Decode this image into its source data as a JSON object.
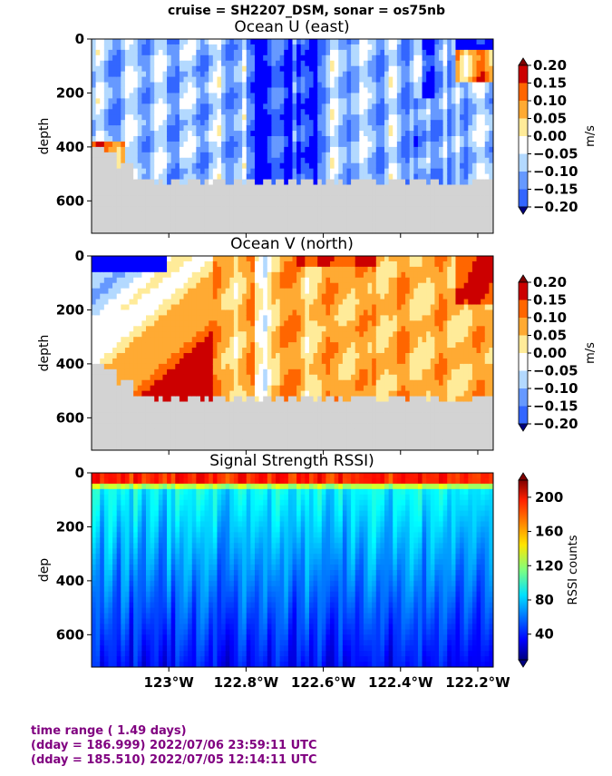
{
  "suptitle": "cruise = SH2207_DSM,  sonar = os75nb",
  "footer": {
    "line1": "time range ( 1.49 days)",
    "line2": "(dday = 186.999) 2022/07/06 23:59:11 UTC",
    "line3": "(dday = 185.510) 2022/07/05 12:14:11 UTC"
  },
  "colors": {
    "seafloor": "#d3d3d3",
    "footer_text": "#800080"
  },
  "chart_data": [
    {
      "type": "heatmap",
      "title": "Ocean U (east)",
      "ylabel": "depth",
      "xlim": [
        -123.2,
        -122.16
      ],
      "ylim": [
        720,
        0
      ],
      "yticks": [
        0,
        200,
        400,
        600
      ],
      "colorbar": {
        "label": "m/s",
        "range": [
          -0.2,
          0.2
        ],
        "ticks": [
          "0.20",
          "0.15",
          "0.10",
          "0.05",
          "0.00",
          "−0.05",
          "−0.10",
          "−0.15",
          "−0.20"
        ],
        "levels": [
          "#0000ff",
          "#3366ff",
          "#6699ff",
          "#b3d9ff",
          "#ffffff",
          "#ffeb99",
          "#ffaa33",
          "#ff6600",
          "#cc0000"
        ]
      },
      "field": "u",
      "mask": "seafloor"
    },
    {
      "type": "heatmap",
      "title": "Ocean V (north)",
      "ylabel": "depth",
      "xlim": [
        -123.2,
        -122.16
      ],
      "ylim": [
        720,
        0
      ],
      "yticks": [
        0,
        200,
        400,
        600
      ],
      "colorbar": {
        "label": "m/s",
        "range": [
          -0.2,
          0.2
        ],
        "ticks": [
          "0.20",
          "0.15",
          "0.10",
          "0.05",
          "0.00",
          "−0.05",
          "−0.10",
          "−0.15",
          "−0.20"
        ],
        "levels": [
          "#0000ff",
          "#3366ff",
          "#6699ff",
          "#b3d9ff",
          "#ffffff",
          "#ffeb99",
          "#ffaa33",
          "#ff6600",
          "#cc0000"
        ]
      },
      "field": "v",
      "mask": "seafloor"
    },
    {
      "type": "heatmap",
      "title": "Signal Strength RSSI)",
      "ylabel": "dep",
      "xlim": [
        -123.2,
        -122.16
      ],
      "ylim": [
        720,
        0
      ],
      "yticks": [
        0,
        200,
        400,
        600
      ],
      "xticks": [
        -123.0,
        -122.8,
        -122.6,
        -122.4,
        -122.2
      ],
      "xticklabels": [
        "123°W",
        "122.8°W",
        "122.6°W",
        "122.4°W",
        "122.2°W"
      ],
      "colorbar": {
        "label": "RSSI counts",
        "range": [
          10,
          220
        ],
        "ticks": [
          "200",
          "160",
          "120",
          "80",
          "40"
        ],
        "tick_values": [
          200,
          160,
          120,
          80,
          40
        ],
        "colormap": "jet"
      },
      "field": "rssi"
    }
  ]
}
